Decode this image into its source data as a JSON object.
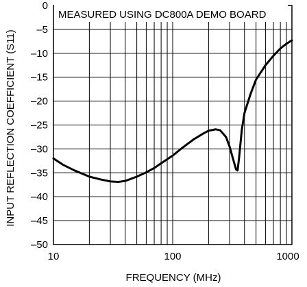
{
  "chart_data": {
    "type": "line",
    "title": "",
    "annotation": "MEASURED USING DC800A DEMO BOARD",
    "xlabel": "FREQUENCY (MHz)",
    "ylabel": "INPUT REFLECTION COEFFICIENT (S11)",
    "xscale": "log",
    "xlim": [
      10,
      1000
    ],
    "ylim": [
      -50,
      0
    ],
    "grid": true,
    "legend": "none",
    "x_ticks": [
      "10",
      "100",
      "1000"
    ],
    "y_ticks": [
      "0",
      "–5",
      "–10",
      "–15",
      "–20",
      "–25",
      "–30",
      "–35",
      "–40",
      "–45",
      "–50"
    ],
    "series": [
      {
        "x": [
          10,
          12,
          15,
          20,
          25,
          30,
          35,
          40,
          50,
          60,
          70,
          80,
          100,
          120,
          150,
          180,
          200,
          230,
          250,
          280,
          300,
          320,
          340,
          350,
          360,
          380,
          400,
          450,
          500,
          600,
          700,
          800,
          900,
          1000
        ],
        "y": [
          -32,
          -33.3,
          -34.5,
          -35.8,
          -36.4,
          -36.8,
          -36.9,
          -36.7,
          -35.8,
          -34.9,
          -34,
          -33,
          -31.4,
          -29.8,
          -28,
          -26.8,
          -26.2,
          -25.9,
          -26.1,
          -27.5,
          -29.5,
          -32,
          -34.3,
          -34.5,
          -32,
          -26,
          -22.5,
          -18.5,
          -15.5,
          -12.5,
          -10.5,
          -9,
          -8,
          -7.3
        ]
      }
    ]
  }
}
